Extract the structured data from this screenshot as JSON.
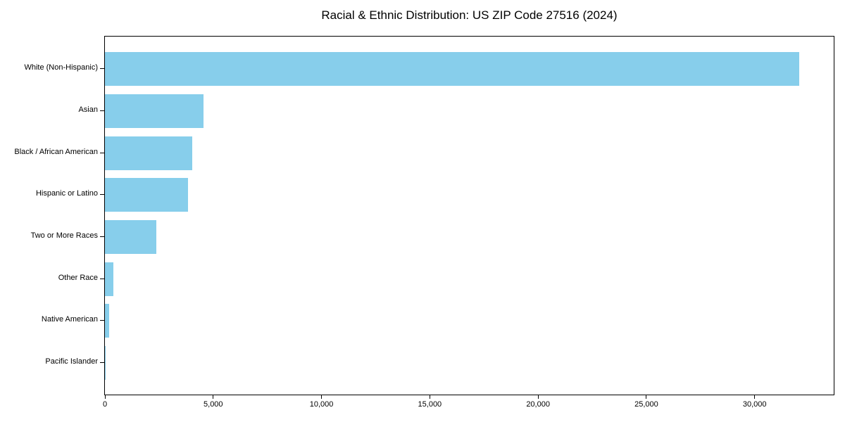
{
  "page": {
    "background_color": "#ffffff",
    "text_color": "#000000"
  },
  "chart_data": {
    "type": "bar",
    "orientation": "horizontal",
    "title": "Racial & Ethnic Distribution: US ZIP Code 27516 (2024)",
    "xlabel": "",
    "ylabel": "",
    "categories": [
      "White (Non-Hispanic)",
      "Asian",
      "Black / African American",
      "Hispanic or Latino",
      "Two or More Races",
      "Other Race",
      "Native American",
      "Pacific Islander"
    ],
    "values": [
      32050,
      4550,
      4040,
      3850,
      2360,
      395,
      190,
      15
    ],
    "xlim": [
      0,
      33650
    ],
    "x_ticks": [
      0,
      5000,
      10000,
      15000,
      20000,
      25000,
      30000
    ],
    "x_tick_labels": [
      "0",
      "5,000",
      "10,000",
      "15,000",
      "20,000",
      "25,000",
      "30,000"
    ],
    "bar_color": "#87CEEB",
    "frame_color": "#000000",
    "grid": false,
    "legend_position": "none"
  }
}
